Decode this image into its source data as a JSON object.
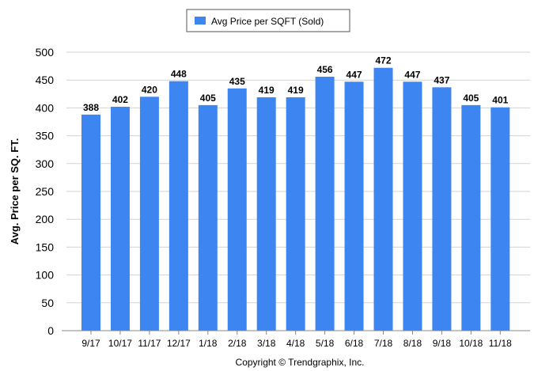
{
  "chart_data": {
    "type": "bar",
    "title": "",
    "xlabel": "",
    "ylabel": "Avg. Price per SQ. FT.",
    "ylim": [
      0,
      500
    ],
    "yticks": [
      0,
      50,
      100,
      150,
      200,
      250,
      300,
      350,
      400,
      450,
      500
    ],
    "grid": true,
    "legend_position": "top-center",
    "categories": [
      "9/17",
      "10/17",
      "11/17",
      "12/17",
      "1/18",
      "2/18",
      "3/18",
      "4/18",
      "5/18",
      "6/18",
      "7/18",
      "8/18",
      "9/18",
      "10/18",
      "11/18"
    ],
    "series": [
      {
        "name": "Avg Price per SQFT (Sold)",
        "color": "#3d85f0",
        "values": [
          388,
          402,
          420,
          448,
          405,
          435,
          419,
          419,
          456,
          447,
          472,
          447,
          437,
          405,
          401
        ]
      }
    ]
  },
  "footer": {
    "credit": "Copyright © Trendgraphix, Inc."
  }
}
